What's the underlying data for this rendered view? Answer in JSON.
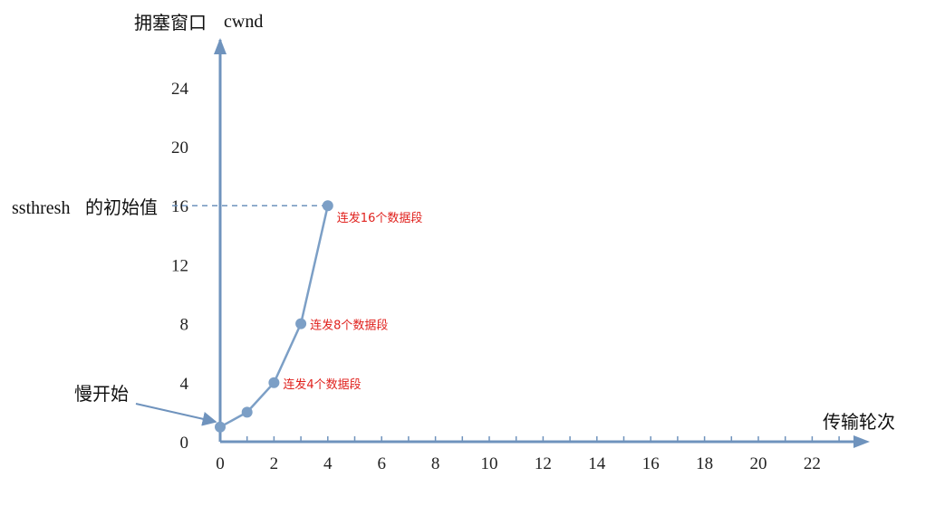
{
  "chart_data": {
    "type": "line",
    "ylabel_cn": "拥塞窗口",
    "ylabel_en": "cwnd",
    "xlabel": "传输轮次",
    "ylim": [
      0,
      24
    ],
    "xlim": [
      0,
      22
    ],
    "y_ticks": [
      "0",
      "4",
      "8",
      "12",
      "16",
      "20",
      "24"
    ],
    "x_ticks": [
      "0",
      "2",
      "4",
      "6",
      "8",
      "10",
      "12",
      "14",
      "16",
      "18",
      "20",
      "22"
    ],
    "grid": false,
    "series": [
      {
        "x": [
          0,
          1,
          2,
          3,
          4
        ],
        "y": [
          1,
          2,
          4,
          8,
          16
        ]
      }
    ],
    "ssthresh": {
      "value": 16,
      "label_en": "ssthresh",
      "label_cn": "的初始值"
    },
    "slow_start_label": "慢开始",
    "annotations": [
      {
        "x": 2,
        "y": 4,
        "text": "连发4个数据段"
      },
      {
        "x": 3,
        "y": 8,
        "text": "连发8个数据段"
      },
      {
        "x": 4,
        "y": 16,
        "text": "连发16个数据段"
      }
    ],
    "colors": {
      "axis": "#6f93bd",
      "line": "#7c9fc6",
      "marker": "#7c9fc6",
      "annotation": "#e0211d",
      "dashed": "#6f93bd"
    }
  }
}
